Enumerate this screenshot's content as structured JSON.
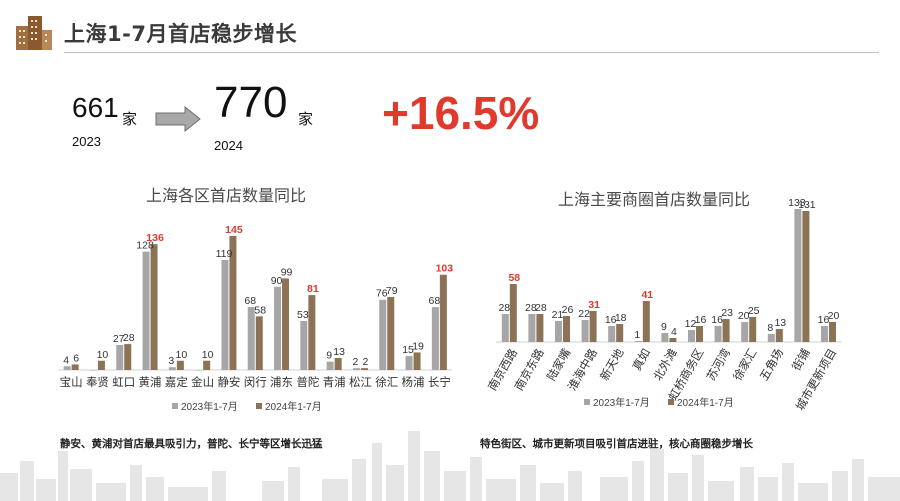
{
  "header": {
    "title": "上海1-7月首店稳步增长",
    "logo_icon": "building-icon"
  },
  "summary": {
    "from_value": "661",
    "from_unit": "家",
    "from_year": "2023",
    "to_value": "770",
    "to_unit": "家",
    "to_year": "2024",
    "growth": "+16.5%",
    "arrow_icon": "arrow-right-icon"
  },
  "colors": {
    "series_2023": "#a6a6a6",
    "series_2024": "#8c7356",
    "highlight": "#e03a2d"
  },
  "left_note": "静安、黄浦对首店最具吸引力，普陀、长宁等区增长迅猛",
  "right_note": "特色街区、城市更新项目吸引首店进驻，核心商圈稳步增长",
  "chart_data": [
    {
      "type": "bar",
      "title": "上海各区首店数量同比",
      "categories": [
        "宝山",
        "奉贤",
        "虹口",
        "黄浦",
        "嘉定",
        "金山",
        "静安",
        "闵行",
        "浦东",
        "普陀",
        "青浦",
        "松江",
        "徐汇",
        "杨浦",
        "长宁"
      ],
      "series": [
        {
          "name": "2023年1-7月",
          "values": [
            4,
            0,
            27,
            128,
            3,
            0,
            119,
            68,
            90,
            53,
            9,
            2,
            76,
            15,
            68
          ]
        },
        {
          "name": "2024年1-7月",
          "values": [
            6,
            10,
            28,
            136,
            10,
            10,
            145,
            58,
            99,
            81,
            13,
            2,
            79,
            19,
            103
          ]
        }
      ],
      "label_2023": [
        "4",
        "",
        "27",
        "128",
        "3",
        "",
        "119",
        "68",
        "90",
        "53",
        "9",
        "2",
        "76",
        "15",
        "68"
      ],
      "label_2024": [
        "6",
        "10",
        "28",
        "136",
        "10",
        "10",
        "145",
        "58",
        "99",
        "81",
        "13",
        "2",
        "79",
        "19",
        "103"
      ],
      "highlight_2024": [
        false,
        false,
        false,
        true,
        false,
        false,
        true,
        false,
        false,
        true,
        false,
        false,
        false,
        false,
        true
      ],
      "ylim": [
        0,
        160
      ],
      "legend": "bottom",
      "grid": false
    },
    {
      "type": "bar",
      "title": "上海主要商圈首店数量同比",
      "categories": [
        "南京西路",
        "南京东路",
        "陆家嘴",
        "淮海中路",
        "新天地",
        "真如",
        "北外滩",
        "虹桥商务区",
        "苏河湾",
        "徐家汇",
        "五角场",
        "街铺",
        "城市更新项目"
      ],
      "series": [
        {
          "name": "2023年1-7月",
          "values": [
            28,
            28,
            21,
            22,
            16,
            1,
            9,
            12,
            16,
            20,
            8,
            133,
            16
          ]
        },
        {
          "name": "2024年1-7月",
          "values": [
            58,
            28,
            26,
            31,
            18,
            41,
            4,
            16,
            23,
            25,
            13,
            131,
            20
          ]
        }
      ],
      "label_2023": [
        "28",
        "28",
        "21",
        "22",
        "16",
        "1",
        "9",
        "12",
        "16",
        "20",
        "8",
        "133",
        "16"
      ],
      "label_2024": [
        "58",
        "28",
        "26",
        "31",
        "18",
        "41",
        "4",
        "16",
        "23",
        "25",
        "13",
        "131",
        "20"
      ],
      "highlight_2024": [
        true,
        false,
        false,
        true,
        false,
        true,
        false,
        false,
        false,
        false,
        false,
        false,
        false
      ],
      "ylim": [
        0,
        140
      ],
      "legend": "bottom",
      "grid": false
    }
  ]
}
